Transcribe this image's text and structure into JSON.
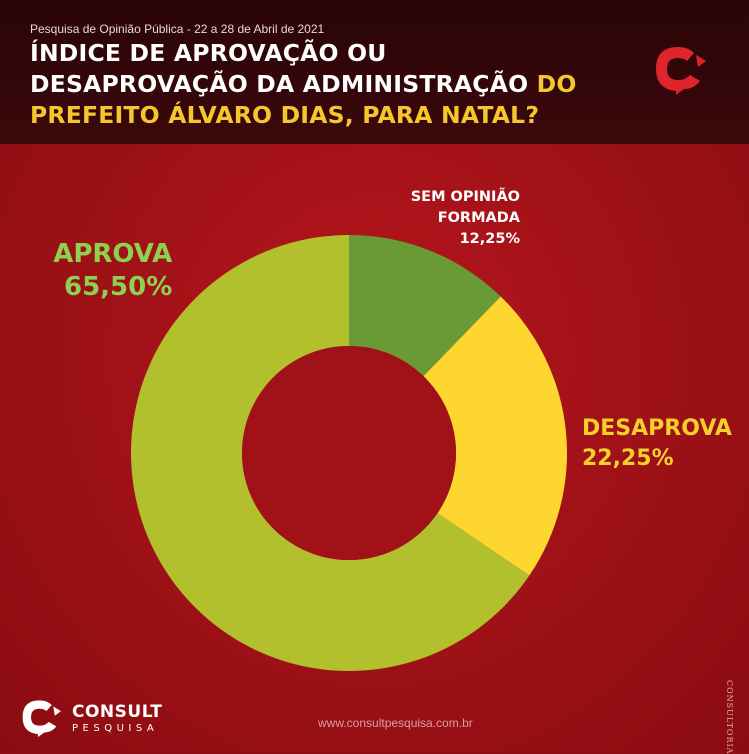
{
  "header": {
    "survey": "Pesquisa de Opinião Pública - 22 a 28 de Abril de 2021",
    "title_part1": "ÍNDICE DE APROVAÇÃO OU DESAPROVAÇÃO DA ADMINISTRAÇÃO ",
    "title_part2": "DO PREFEITO ÁLVARO DIAS, PARA NATAL?"
  },
  "colors": {
    "aprova": "#b3c02e",
    "desaprova": "#fdd630",
    "sem_opiniao": "#6a9a35",
    "background": "#a11218",
    "logo": "#e0242c"
  },
  "chart_data": {
    "type": "pie",
    "donut": true,
    "categories": [
      "SEM OPINIÃO FORMADA",
      "DESAPROVA",
      "APROVA"
    ],
    "values": [
      12.25,
      22.25,
      65.5
    ],
    "value_labels": [
      "12,25%",
      "22,25%",
      "65,50%"
    ]
  },
  "labels": {
    "aprova": {
      "name": "APROVA",
      "value": "65,50%"
    },
    "desaprova": {
      "name": "DESAPROVA",
      "value": "22,25%"
    },
    "sem_opiniao": {
      "line1": "SEM OPINIÃO",
      "line2": "FORMADA",
      "value": "12,25%"
    }
  },
  "footer": {
    "brand": "CONSULT",
    "brand_sub": "PESQUISA",
    "url": "www.consultpesquisa.com.br",
    "side_text": "CONSULTORIA"
  },
  "icons": {
    "top_logo": "consult-logo-icon",
    "footer_logo": "consult-logo-icon"
  }
}
